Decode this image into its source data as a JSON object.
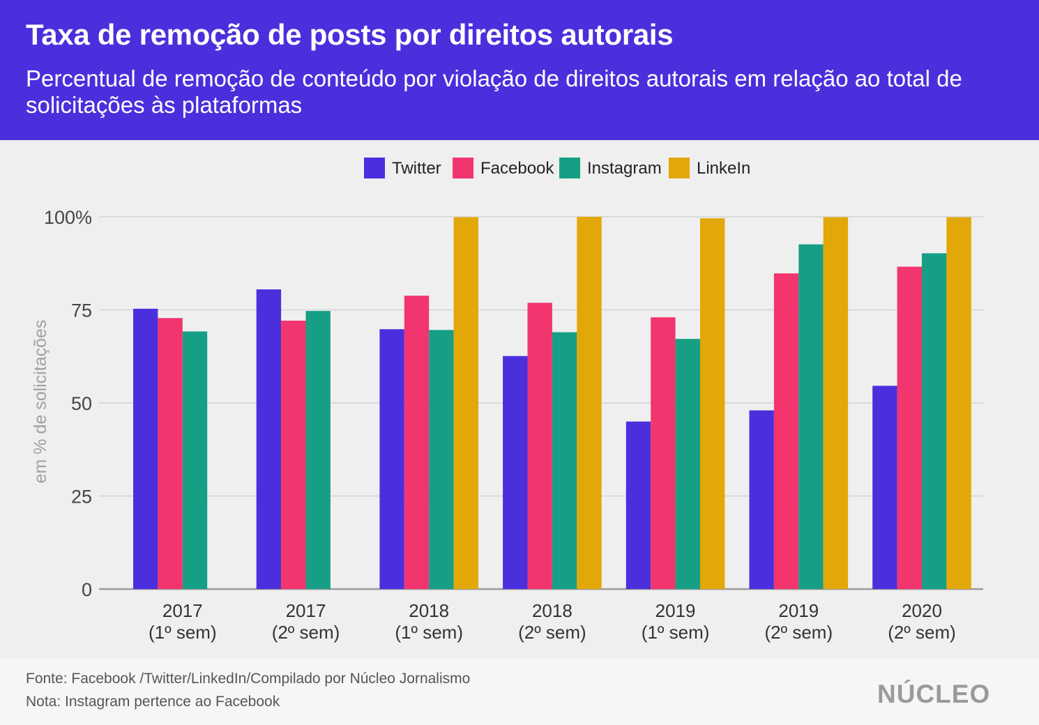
{
  "header": {
    "title": "Taxa de remoção de posts por direitos autorais",
    "subtitle": "Percentual de remoção de conteúdo por violação de direitos autorais em relação ao total de solicitações às plataformas"
  },
  "footer": {
    "source": "Fonte: Facebook /Twitter/LinkedIn/Compilado por Núcleo Jornalismo",
    "note": "Nota: Instagram pertence ao Facebook",
    "logo": "NÚCLEO"
  },
  "chart_data": {
    "type": "bar",
    "title": "Taxa de remoção de posts por direitos autorais",
    "subtitle": "Percentual de remoção de conteúdo por violação de direitos autorais em relação ao total de solicitações às plataformas",
    "ylabel": "em % de solicitações",
    "xlabel": "",
    "ylim": [
      0,
      100
    ],
    "yticks": [
      0,
      25,
      50,
      75,
      100
    ],
    "ytick_labels": [
      "0",
      "25",
      "50",
      "75",
      "100%"
    ],
    "grid": true,
    "legend_position": "top-center",
    "categories": [
      [
        "2017",
        "(1º sem)"
      ],
      [
        "2017",
        "(2º sem)"
      ],
      [
        "2018",
        "(1º sem)"
      ],
      [
        "2018",
        "(2º sem)"
      ],
      [
        "2019",
        "(1º sem)"
      ],
      [
        "2019",
        "(2º sem)"
      ],
      [
        "2020",
        "(2º sem)"
      ]
    ],
    "series": [
      {
        "name": "Twitter",
        "color": "#4b2fdc",
        "values": [
          75.3,
          80.5,
          69.8,
          62.6,
          45.0,
          48.0,
          54.6
        ]
      },
      {
        "name": "Facebook",
        "color": "#f2356f",
        "values": [
          72.8,
          72.1,
          78.8,
          76.9,
          73.0,
          84.8,
          86.6
        ]
      },
      {
        "name": "Instagram",
        "color": "#179f85",
        "values": [
          69.2,
          74.7,
          69.6,
          69.0,
          67.2,
          92.6,
          90.2
        ]
      },
      {
        "name": "LinkeIn",
        "color": "#e2a807",
        "values": [
          null,
          null,
          99.9,
          100.0,
          99.6,
          99.9,
          99.9
        ]
      }
    ]
  }
}
